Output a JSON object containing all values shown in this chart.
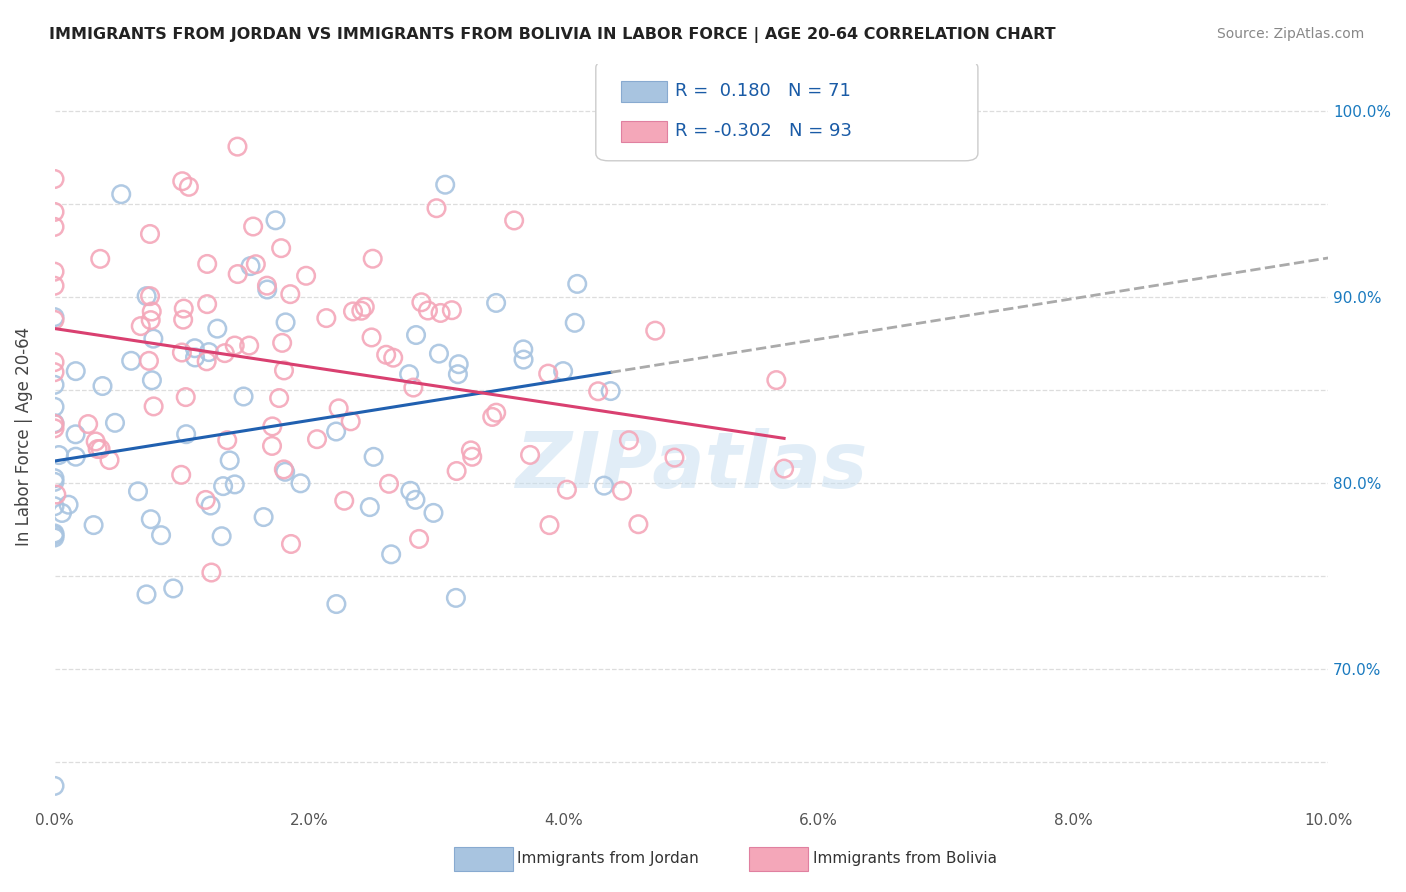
{
  "title": "IMMIGRANTS FROM JORDAN VS IMMIGRANTS FROM BOLIVIA IN LABOR FORCE | AGE 20-64 CORRELATION CHART",
  "source": "Source: ZipAtlas.com",
  "ylabel": "In Labor Force | Age 20-64",
  "xlim": [
    0.0,
    0.1
  ],
  "ylim": [
    0.625,
    1.025
  ],
  "jordan_color": "#a8c4e0",
  "bolivia_color": "#f4a7b9",
  "jordan_line_color": "#2060b0",
  "bolivia_line_color": "#d94070",
  "jordan_R": 0.18,
  "jordan_N": 71,
  "bolivia_R": -0.302,
  "bolivia_N": 93,
  "legend_R_color": "#1a5ba6",
  "watermark": "ZIPatlas",
  "background_color": "#ffffff",
  "grid_color": "#dddddd",
  "ytick_positions": [
    0.65,
    0.7,
    0.75,
    0.8,
    0.85,
    0.9,
    0.95,
    1.0
  ],
  "ytick_labels_right": [
    "",
    "70.0%",
    "",
    "80.0%",
    "",
    "90.0%",
    "",
    "100.0%"
  ]
}
